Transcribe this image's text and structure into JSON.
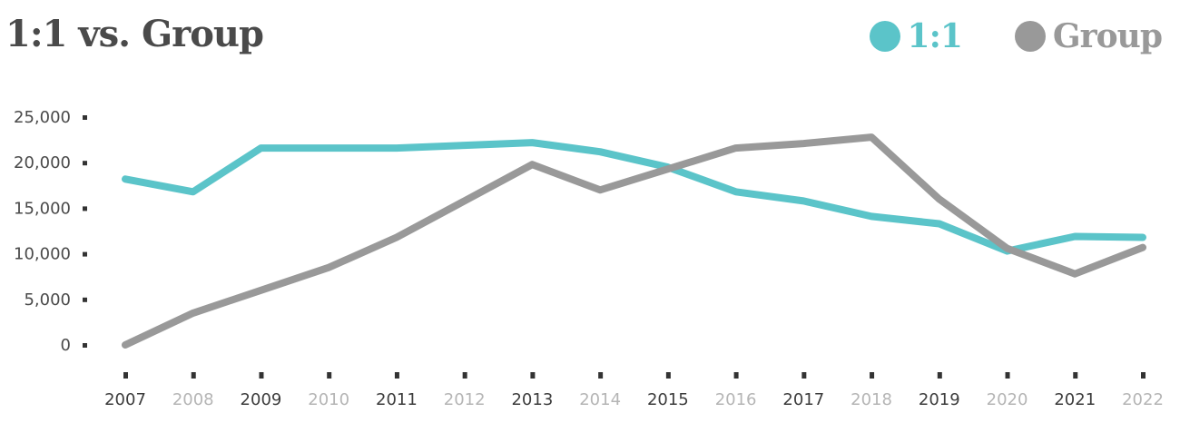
{
  "chart_data": {
    "type": "line",
    "title": "1:1 vs. Group",
    "x": [
      "2007",
      "2008",
      "2009",
      "2010",
      "2011",
      "2012",
      "2013",
      "2014",
      "2015",
      "2016",
      "2017",
      "2018",
      "2019",
      "2020",
      "2021",
      "2022"
    ],
    "x_label_colors": [
      "#3d3d3d",
      "#b5b5b5",
      "#3d3d3d",
      "#b5b5b5",
      "#3d3d3d",
      "#b5b5b5",
      "#3d3d3d",
      "#b5b5b5",
      "#3d3d3d",
      "#b5b5b5",
      "#3d3d3d",
      "#b5b5b5",
      "#3d3d3d",
      "#b5b5b5",
      "#3d3d3d",
      "#b5b5b5"
    ],
    "yticks": [
      "0",
      "5,000",
      "10,000",
      "15,000",
      "20,000",
      "25,000"
    ],
    "ytick_values": [
      0,
      5000,
      10000,
      15000,
      20000,
      25000
    ],
    "ylim": [
      0,
      25000
    ],
    "grid": false,
    "legend_position": "top-right",
    "series": [
      {
        "name": "1:1",
        "color": "#5bc4c9",
        "values": [
          18200,
          16800,
          21600,
          21600,
          21600,
          21900,
          22200,
          21200,
          19500,
          16800,
          15800,
          14100,
          13300,
          10300,
          11900,
          11800
        ]
      },
      {
        "name": "Group",
        "color": "#999999",
        "values": [
          0,
          3500,
          6000,
          8500,
          11800,
          15800,
          19800,
          17000,
          19300,
          21600,
          22100,
          22800,
          16000,
          10600,
          7800,
          10700
        ]
      }
    ]
  }
}
